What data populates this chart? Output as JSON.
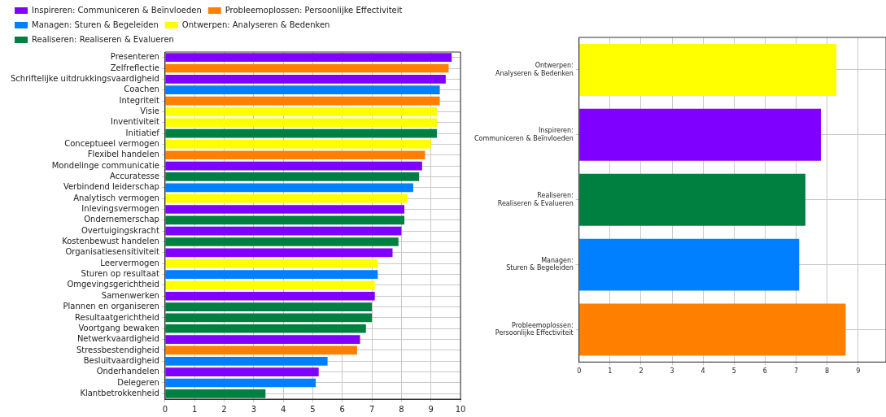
{
  "chart_data": [
    {
      "type": "bar",
      "orientation": "horizontal",
      "stacked": true,
      "grid": true,
      "legend": "top",
      "categories": [
        "Presenteren",
        "Zelfreflectie",
        "Schriftelijke uitdrukkingsvaardigheid",
        "Coachen",
        "Integriteit",
        "Visie",
        "Inventiviteit",
        "Initiatief",
        "Conceptueel vermogen",
        "Flexibel handelen",
        "Mondelinge communicatie",
        "Accuratesse",
        "Verbindend leiderschap",
        "Analytisch vermogen",
        "Inlevingsvermogen",
        "Ondernemerschap",
        "Overtuigingskracht",
        "Kostenbewust handelen",
        "Organisatiesensitiviteit",
        "Leervermogen",
        "Sturen op resultaat",
        "Omgevingsgerichtheid",
        "Samenwerken",
        "Plannen en organiseren",
        "Resultaatgerichtheid",
        "Voortgang bewaken",
        "Netwerkvaardigheid",
        "Stressbestendigheid",
        "Besluitvaardigheid",
        "Onderhandelen",
        "Delegeren",
        "Klantbetrokkenheid"
      ],
      "xlim": [
        0,
        10
      ],
      "xticks": [
        0,
        1,
        2,
        3,
        4,
        5,
        6,
        7,
        8,
        9,
        10
      ],
      "series": [
        {
          "name": "Inspireren: Communiceren & Beïnvloeden",
          "color": "#8000ff",
          "values": [
            9.7,
            null,
            9.5,
            null,
            null,
            null,
            null,
            null,
            null,
            null,
            8.7,
            null,
            null,
            null,
            8.1,
            null,
            8.0,
            null,
            7.7,
            null,
            null,
            null,
            7.1,
            null,
            null,
            null,
            6.6,
            null,
            null,
            5.2,
            null,
            null
          ]
        },
        {
          "name": "Probleemoplossen: Persoonlijke Effectiviteit",
          "color": "#ff8000",
          "values": [
            null,
            9.6,
            null,
            null,
            9.3,
            null,
            null,
            null,
            null,
            8.8,
            null,
            null,
            null,
            null,
            null,
            null,
            null,
            null,
            null,
            null,
            null,
            null,
            null,
            null,
            null,
            null,
            null,
            6.5,
            null,
            null,
            null,
            null
          ]
        },
        {
          "name": "Managen: Sturen & Begeleiden",
          "color": "#0080ff",
          "values": [
            null,
            null,
            null,
            9.3,
            null,
            null,
            null,
            null,
            null,
            null,
            null,
            null,
            8.4,
            null,
            null,
            null,
            null,
            null,
            null,
            null,
            7.2,
            null,
            null,
            null,
            null,
            null,
            null,
            null,
            5.5,
            null,
            5.1,
            null
          ]
        },
        {
          "name": "Ontwerpen: Analyseren & Bedenken",
          "color": "#ffff00",
          "values": [
            null,
            null,
            null,
            null,
            null,
            9.2,
            9.2,
            null,
            9.0,
            null,
            null,
            null,
            null,
            8.2,
            null,
            null,
            null,
            null,
            null,
            7.2,
            null,
            7.1,
            null,
            null,
            null,
            null,
            null,
            null,
            null,
            null,
            null,
            null
          ]
        },
        {
          "name": "Realiseren: Realiseren & Evalueren",
          "color": "#008040",
          "values": [
            null,
            null,
            null,
            null,
            null,
            null,
            null,
            9.2,
            null,
            null,
            null,
            8.6,
            null,
            null,
            null,
            8.1,
            null,
            7.9,
            null,
            null,
            null,
            null,
            null,
            7.0,
            7.0,
            6.8,
            null,
            null,
            null,
            null,
            null,
            3.4
          ]
        }
      ]
    },
    {
      "type": "bar",
      "orientation": "horizontal",
      "grid": true,
      "categories": [
        "Ontwerpen:\nAnalyseren & Bedenken",
        "Inspireren:\nCommuniceren & Beïnvloeden",
        "Realiseren:\nRealiseren & Evalueren",
        "Managen:\nSturen & Begeleiden",
        "Probleemoplossen:\nPersoonlijke Effectiviteit"
      ],
      "values": [
        8.3,
        7.8,
        7.3,
        7.1,
        8.6
      ],
      "colors": [
        "#ffff00",
        "#8000ff",
        "#008040",
        "#0080ff",
        "#ff8000"
      ],
      "xlim": [
        0,
        9.9
      ],
      "xticks": [
        0,
        1,
        2,
        3,
        4,
        5,
        6,
        7,
        8,
        9
      ]
    }
  ]
}
